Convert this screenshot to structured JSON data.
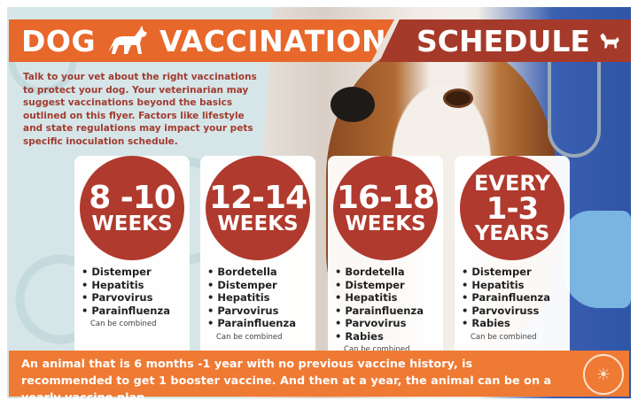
{
  "header": {
    "title_left": "DOG",
    "title_middle": "VACCINATION",
    "title_right": "SCHEDULE"
  },
  "intro": "Talk to your vet about the right vaccinations to protect your dog. Your veterinarian may suggest vaccinations beyond the basics outlined on this flyer. Factors like lifestyle and state regulations may impact your pets specific inoculation schedule.",
  "cards": [
    {
      "top": "",
      "big": "8 -10",
      "unit": "WEEKS",
      "items": [
        "Distemper",
        "Hepatitis",
        "Parvovirus",
        "Parainfluenza"
      ],
      "note": "Can be combined"
    },
    {
      "top": "",
      "big": "12-14",
      "unit": "WEEKS",
      "items": [
        "Bordetella",
        "Distemper",
        "Hepatitis",
        "Parvovirus",
        "Parainfluenza"
      ],
      "note": "Can be combined"
    },
    {
      "top": "",
      "big": "16-18",
      "unit": "WEEKS",
      "items": [
        "Bordetella",
        "Distemper",
        "Hepatitis",
        "Parainfluenza",
        "Parvovirus",
        "Rabies"
      ],
      "note": "Can be combined"
    },
    {
      "top": "EVERY",
      "big": "1-3",
      "unit": "YEARS",
      "items": [
        "Distemper",
        "Hepatitis",
        "Parainfluenza",
        "Parvoviruss",
        "Rabies"
      ],
      "note": "Can be combined"
    }
  ],
  "footer": "An animal that is 6 months -1 year with no previous vaccine history, is recommended to get 1 booster vaccine. And then at a year, the animal can be on a yearly vaccine plan.",
  "colors": {
    "orange": "#e8672a",
    "dark_red": "#a63a2a",
    "circle_red": "#b03a2e",
    "footer_orange": "#ef7a34"
  }
}
